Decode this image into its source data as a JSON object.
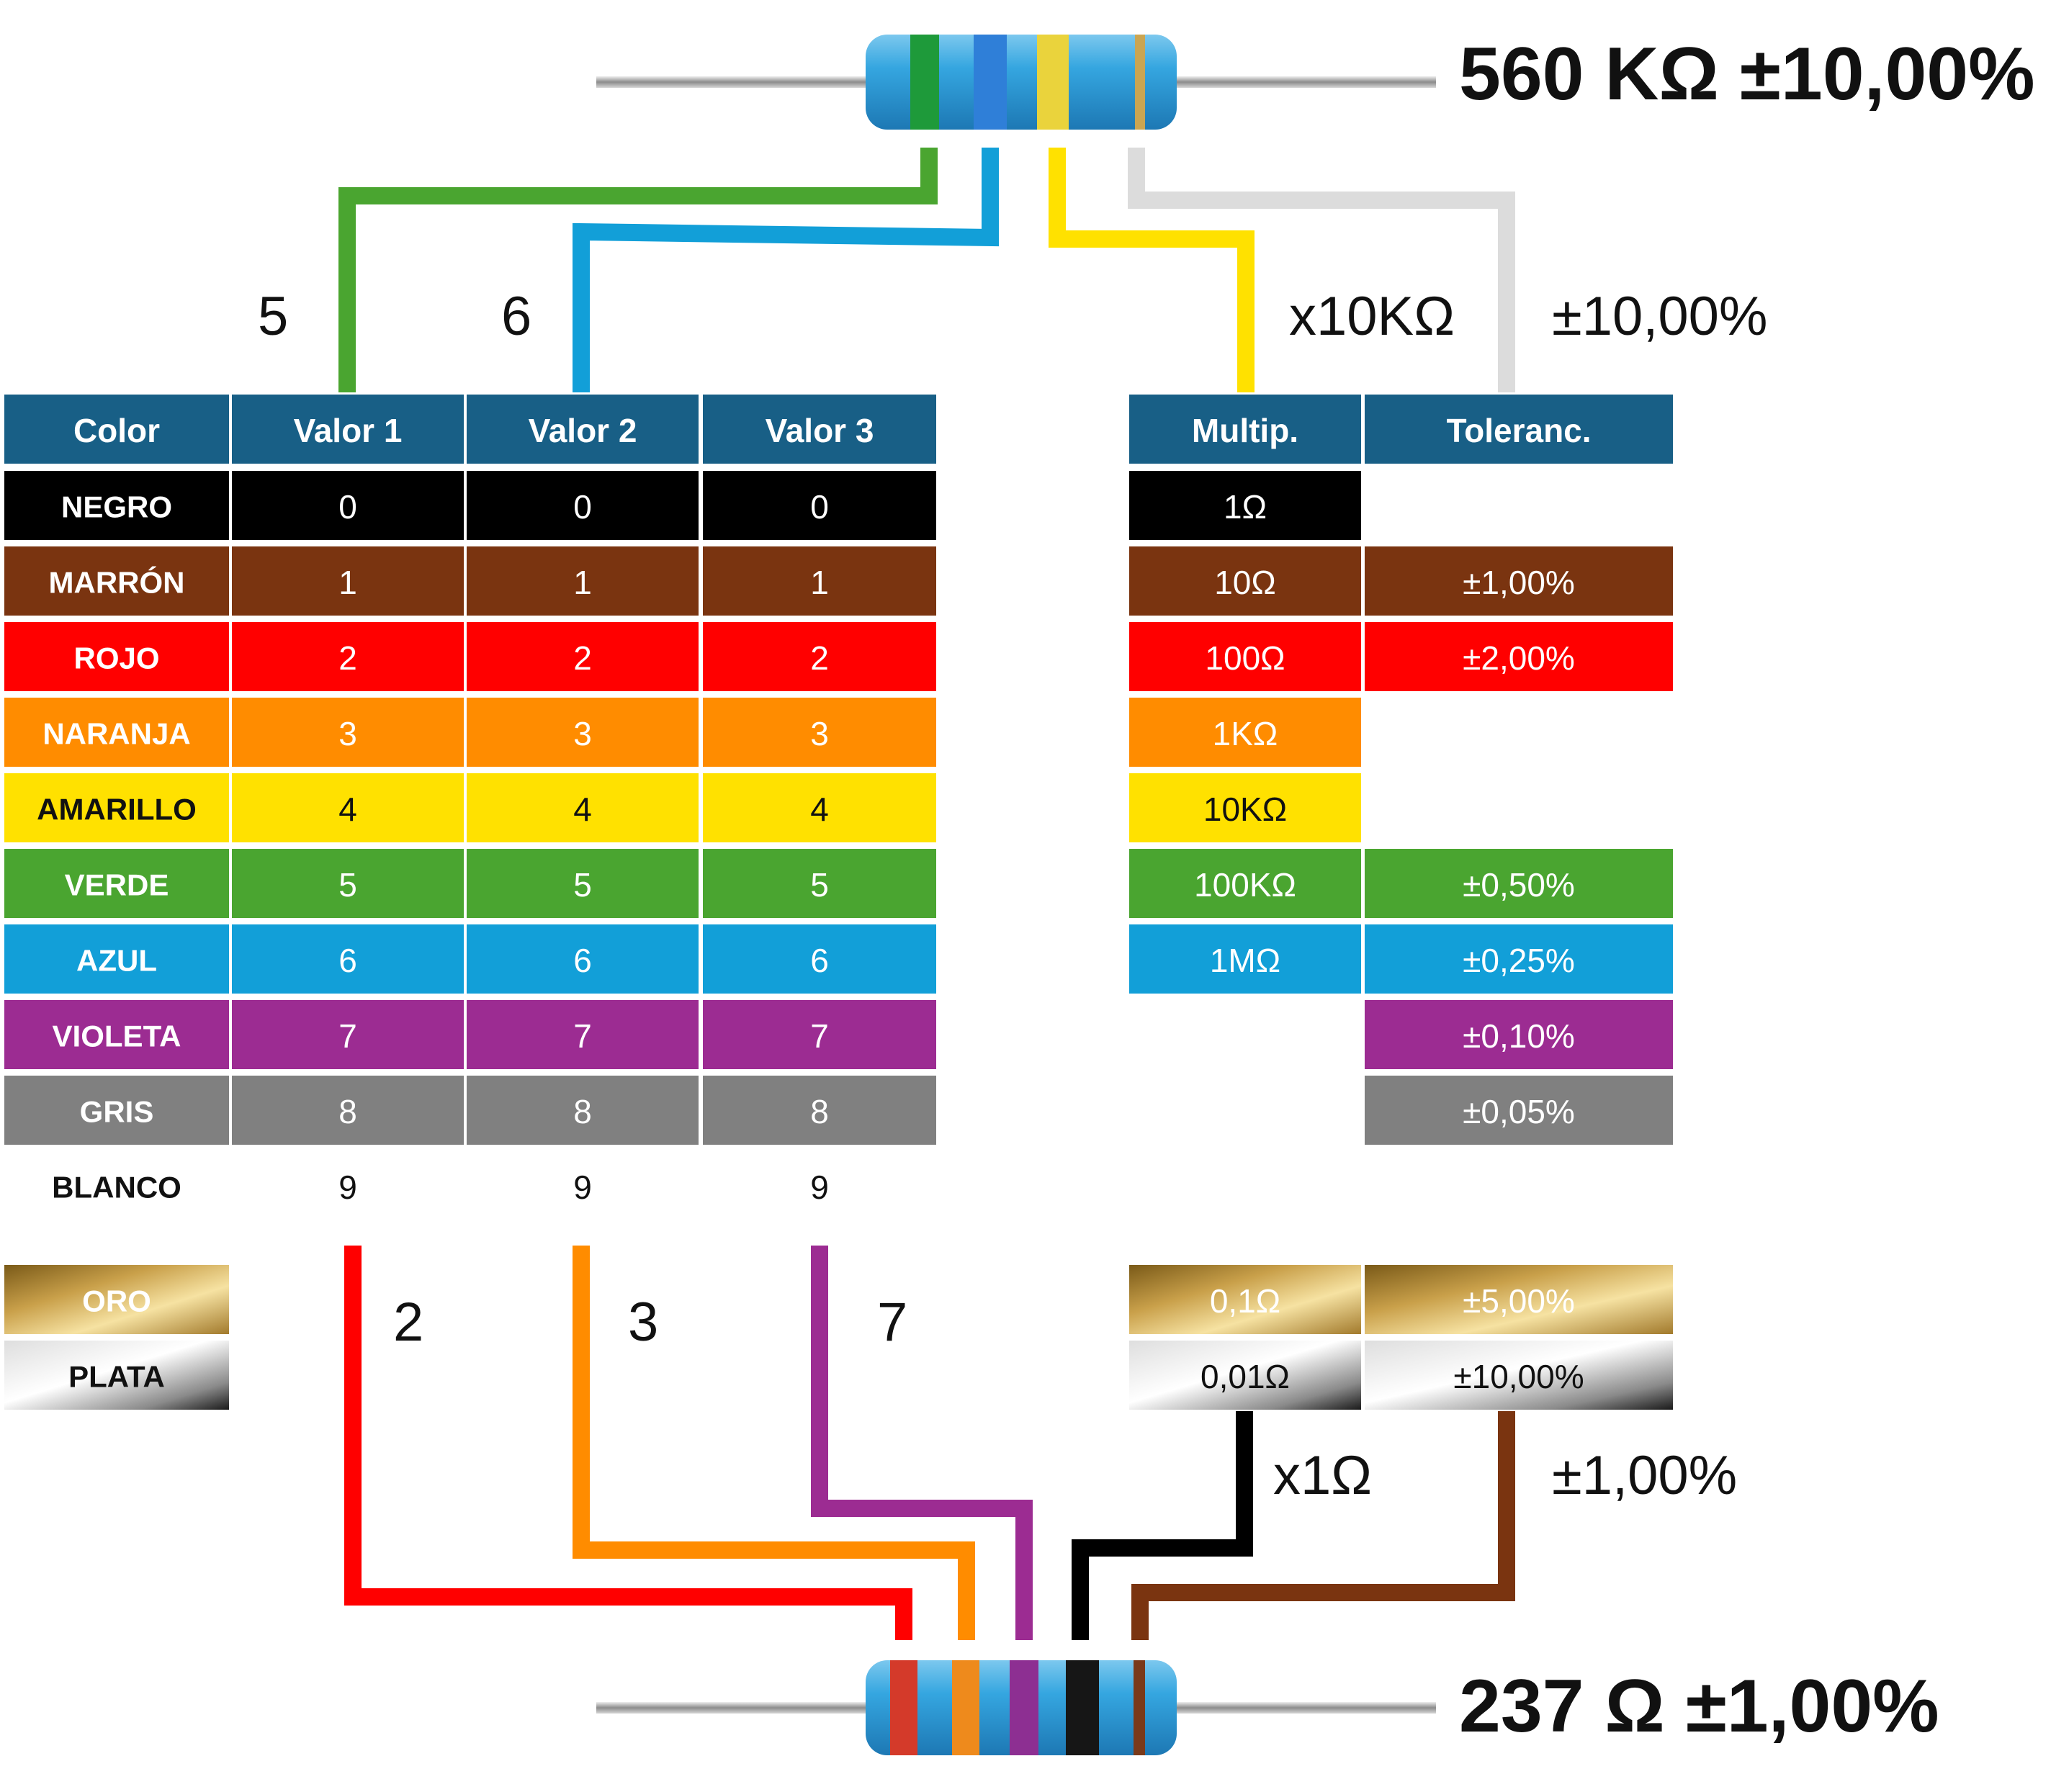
{
  "top_resistor": {
    "label": "560 KΩ ±10,00%",
    "bands": [
      "#1e9a3a",
      "#2f7fd8",
      "#ead33c",
      "#caa552"
    ],
    "reading": {
      "d1": "5",
      "d2": "6",
      "mult": "x10KΩ",
      "tol": "±10,00%"
    }
  },
  "bottom_resistor": {
    "label": "237 Ω ±1,00%",
    "bands": [
      "#d43a2a",
      "#ee8a1c",
      "#8d2f92",
      "#161616",
      "#7a3a1a"
    ],
    "reading": {
      "d1": "2",
      "d2": "3",
      "d3": "7",
      "mult": "x1Ω",
      "tol": "±1,00%"
    }
  },
  "digit_headers": [
    "Color",
    "Valor 1",
    "Valor 2",
    "Valor 3"
  ],
  "right_headers": [
    "Multip.",
    "Toleranc."
  ],
  "header_color": "#185f86",
  "rows": [
    {
      "name": "NEGRO",
      "bg": "#000000",
      "fg": "#ffffff",
      "digit": "0",
      "mult": "1Ω",
      "tol": ""
    },
    {
      "name": "MARRÓN",
      "bg": "#7a3410",
      "fg": "#ffffff",
      "digit": "1",
      "mult": "10Ω",
      "tol": "±1,00%"
    },
    {
      "name": "ROJO",
      "bg": "#ff0000",
      "fg": "#ffffff",
      "digit": "2",
      "mult": "100Ω",
      "tol": "±2,00%"
    },
    {
      "name": "NARANJA",
      "bg": "#ff8c00",
      "fg": "#ffffff",
      "digit": "3",
      "mult": "1KΩ",
      "tol": ""
    },
    {
      "name": "AMARILLO",
      "bg": "#ffe100",
      "fg": "#111111",
      "digit": "4",
      "mult": "10KΩ",
      "tol": ""
    },
    {
      "name": "VERDE",
      "bg": "#4aa530",
      "fg": "#ffffff",
      "digit": "5",
      "mult": "100KΩ",
      "tol": "±0,50%"
    },
    {
      "name": "AZUL",
      "bg": "#129fd8",
      "fg": "#ffffff",
      "digit": "6",
      "mult": "1MΩ",
      "tol": "±0,25%"
    },
    {
      "name": "VIOLETA",
      "bg": "#9c2c92",
      "fg": "#ffffff",
      "digit": "7",
      "mult": "",
      "tol": "±0,10%"
    },
    {
      "name": "GRIS",
      "bg": "#808080",
      "fg": "#ffffff",
      "digit": "8",
      "mult": "",
      "tol": "±0,05%"
    },
    {
      "name": "BLANCO",
      "bg": "#ffffff",
      "fg": "#111111",
      "digit": "9",
      "mult": "",
      "tol": ""
    }
  ],
  "oro": {
    "name": "ORO",
    "mult": "0,1Ω",
    "tol": "±5,00%"
  },
  "plata": {
    "name": "PLATA",
    "mult": "0,01Ω",
    "tol": "±10,00%"
  },
  "wire_colors": {
    "green": "#4aa530",
    "blue": "#129fd8",
    "yellow": "#ffe100",
    "silver": "#dcdcdc",
    "red": "#ff0000",
    "orange": "#ff8c00",
    "violet": "#9c2c92",
    "black": "#000000",
    "brown": "#7a3410"
  }
}
